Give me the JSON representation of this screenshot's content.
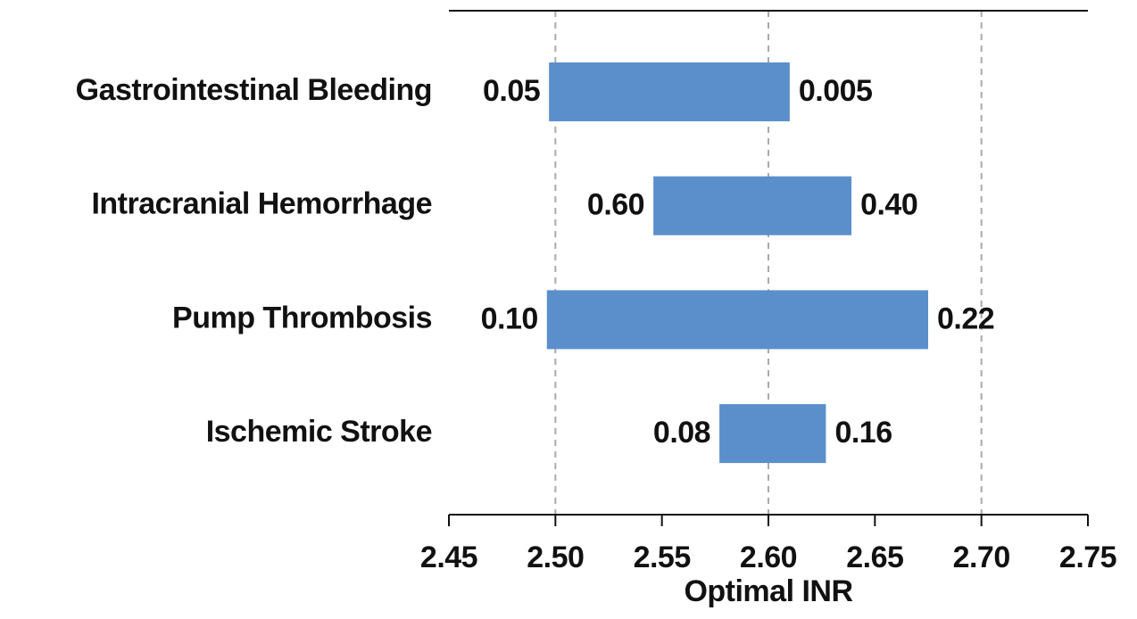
{
  "chart_data": {
    "type": "range-bar",
    "categories": [
      "Gastrointestinal Bleeding",
      "Intracranial Hemorrhage",
      "Pump Thrombosis",
      "Ischemic Stroke"
    ],
    "low": [
      2.497,
      2.546,
      2.496,
      2.577
    ],
    "high": [
      2.61,
      2.639,
      2.675,
      2.627
    ],
    "low_labels": [
      "0.05",
      "0.60",
      "0.10",
      "0.08"
    ],
    "high_labels": [
      "0.005",
      "0.40",
      "0.22",
      "0.16"
    ],
    "color": "#5b8fcb",
    "xlabel": "Optimal INR",
    "xlim": [
      2.45,
      2.75
    ],
    "xticks": [
      2.45,
      {
        "value": 2.5,
        "label": "2.50"
      },
      2.55,
      {
        "value": 2.6,
        "label": "2.60"
      },
      2.65,
      {
        "value": 2.7,
        "label": "2.70"
      },
      2.75
    ],
    "xgrid": [
      2.5,
      2.6,
      2.7
    ]
  }
}
